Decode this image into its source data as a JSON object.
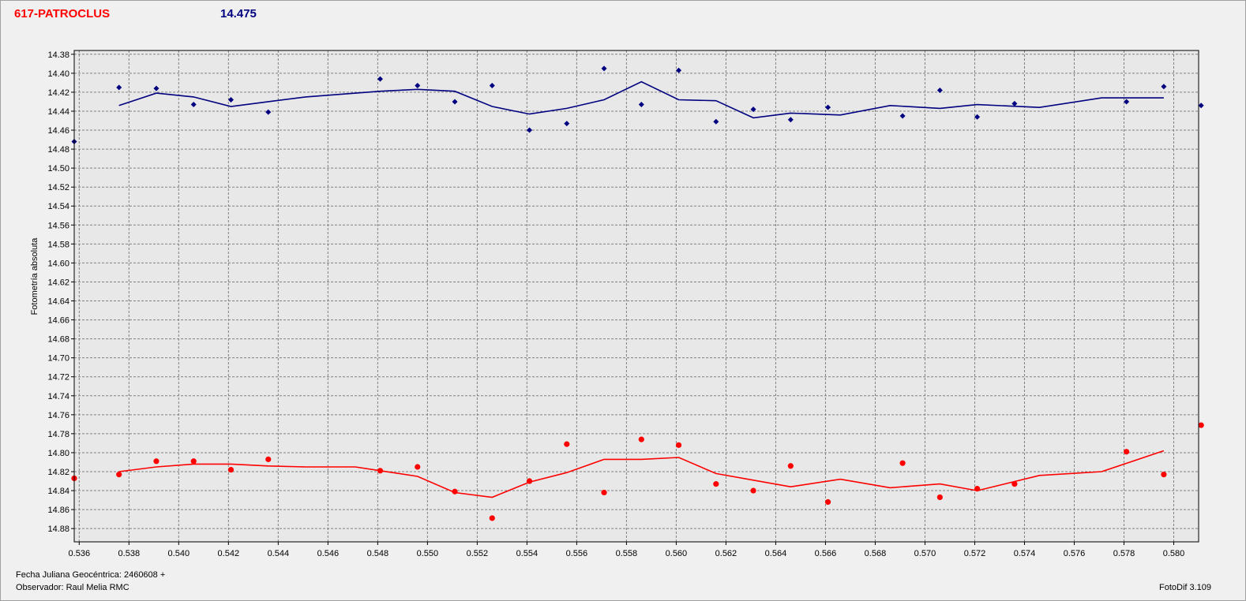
{
  "header": {
    "object_name": "617-PATROCLUS",
    "magnitude": "14.475"
  },
  "footer": {
    "julian_date": "Fecha Juliana Geocéntrica: 2460608 +",
    "observer": "Observador: Raul Melia RMC",
    "software": "FotoDif 3.109"
  },
  "colors": {
    "blue_series": "#000080",
    "red_series": "#ff0000",
    "grid": "#808080",
    "plot_bg": "#e8e8e8"
  },
  "chart_data": {
    "type": "scatter",
    "title": "",
    "xlabel": "",
    "ylabel": "Fotometría absoluta",
    "xlim": [
      0.5358,
      0.581
    ],
    "ylim": [
      14.376,
      14.894
    ],
    "y_inverted": true,
    "grid": true,
    "x_ticks": [
      "0.536",
      "0.538",
      "0.540",
      "0.542",
      "0.544",
      "0.546",
      "0.548",
      "0.550",
      "0.552",
      "0.554",
      "0.556",
      "0.558",
      "0.560",
      "0.562",
      "0.564",
      "0.566",
      "0.568",
      "0.570",
      "0.572",
      "0.574",
      "0.576",
      "0.578",
      "0.580"
    ],
    "y_ticks": [
      "14.38",
      "14.40",
      "14.42",
      "14.44",
      "14.46",
      "14.48",
      "14.50",
      "14.52",
      "14.54",
      "14.56",
      "14.58",
      "14.60",
      "14.62",
      "14.64",
      "14.66",
      "14.68",
      "14.70",
      "14.72",
      "14.74",
      "14.76",
      "14.78",
      "14.80",
      "14.82",
      "14.84",
      "14.86",
      "14.88"
    ],
    "series": [
      {
        "color": "#000080",
        "marker": "diamond",
        "points": [
          [
            0.5358,
            14.472
          ],
          [
            0.5376,
            14.415
          ],
          [
            0.5391,
            14.416
          ],
          [
            0.5406,
            14.433
          ],
          [
            0.5421,
            14.428
          ],
          [
            0.5436,
            14.441
          ],
          [
            0.5481,
            14.406
          ],
          [
            0.5496,
            14.413
          ],
          [
            0.5511,
            14.43
          ],
          [
            0.5526,
            14.413
          ],
          [
            0.5541,
            14.46
          ],
          [
            0.5556,
            14.453
          ],
          [
            0.5571,
            14.395
          ],
          [
            0.5586,
            14.433
          ],
          [
            0.5601,
            14.397
          ],
          [
            0.5616,
            14.451
          ],
          [
            0.5631,
            14.438
          ],
          [
            0.5646,
            14.449
          ],
          [
            0.5661,
            14.436
          ],
          [
            0.5691,
            14.445
          ],
          [
            0.5706,
            14.418
          ],
          [
            0.5721,
            14.446
          ],
          [
            0.5736,
            14.432
          ],
          [
            0.5781,
            14.43
          ],
          [
            0.5796,
            14.414
          ],
          [
            0.5811,
            14.434
          ]
        ],
        "trend": [
          [
            0.5376,
            14.434
          ],
          [
            0.5391,
            14.421
          ],
          [
            0.5406,
            14.425
          ],
          [
            0.5421,
            14.435
          ],
          [
            0.5436,
            14.43
          ],
          [
            0.5451,
            14.425
          ],
          [
            0.5481,
            14.419
          ],
          [
            0.5496,
            14.417
          ],
          [
            0.5511,
            14.419
          ],
          [
            0.5526,
            14.435
          ],
          [
            0.5541,
            14.443
          ],
          [
            0.5556,
            14.437
          ],
          [
            0.5571,
            14.428
          ],
          [
            0.5586,
            14.409
          ],
          [
            0.5601,
            14.428
          ],
          [
            0.5616,
            14.429
          ],
          [
            0.5631,
            14.447
          ],
          [
            0.5646,
            14.442
          ],
          [
            0.5666,
            14.444
          ],
          [
            0.5686,
            14.434
          ],
          [
            0.5706,
            14.437
          ],
          [
            0.5721,
            14.433
          ],
          [
            0.5746,
            14.436
          ],
          [
            0.5771,
            14.426
          ],
          [
            0.5796,
            14.426
          ]
        ]
      },
      {
        "color": "#ff0000",
        "marker": "circle",
        "points": [
          [
            0.5358,
            14.827
          ],
          [
            0.5376,
            14.823
          ],
          [
            0.5391,
            14.809
          ],
          [
            0.5406,
            14.809
          ],
          [
            0.5421,
            14.818
          ],
          [
            0.5436,
            14.807
          ],
          [
            0.5481,
            14.819
          ],
          [
            0.5496,
            14.815
          ],
          [
            0.5511,
            14.841
          ],
          [
            0.5526,
            14.869
          ],
          [
            0.5541,
            14.83
          ],
          [
            0.5556,
            14.791
          ],
          [
            0.5571,
            14.842
          ],
          [
            0.5586,
            14.786
          ],
          [
            0.5601,
            14.792
          ],
          [
            0.5616,
            14.833
          ],
          [
            0.5631,
            14.84
          ],
          [
            0.5646,
            14.814
          ],
          [
            0.5661,
            14.852
          ],
          [
            0.5691,
            14.811
          ],
          [
            0.5706,
            14.847
          ],
          [
            0.5721,
            14.838
          ],
          [
            0.5736,
            14.833
          ],
          [
            0.5781,
            14.799
          ],
          [
            0.5796,
            14.823
          ],
          [
            0.5811,
            14.771
          ]
        ],
        "trend": [
          [
            0.5376,
            14.82
          ],
          [
            0.5391,
            14.815
          ],
          [
            0.5406,
            14.812
          ],
          [
            0.5421,
            14.812
          ],
          [
            0.5436,
            14.814
          ],
          [
            0.5451,
            14.815
          ],
          [
            0.5471,
            14.815
          ],
          [
            0.5481,
            14.819
          ],
          [
            0.5496,
            14.825
          ],
          [
            0.5511,
            14.842
          ],
          [
            0.5526,
            14.847
          ],
          [
            0.5541,
            14.831
          ],
          [
            0.5556,
            14.821
          ],
          [
            0.5571,
            14.807
          ],
          [
            0.5586,
            14.807
          ],
          [
            0.5601,
            14.805
          ],
          [
            0.5616,
            14.822
          ],
          [
            0.5631,
            14.829
          ],
          [
            0.5646,
            14.836
          ],
          [
            0.5666,
            14.828
          ],
          [
            0.5686,
            14.837
          ],
          [
            0.5706,
            14.833
          ],
          [
            0.5721,
            14.84
          ],
          [
            0.5746,
            14.824
          ],
          [
            0.5771,
            14.82
          ],
          [
            0.5796,
            14.798
          ]
        ]
      }
    ]
  }
}
